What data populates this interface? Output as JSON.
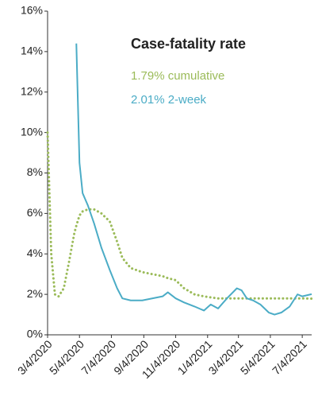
{
  "chart_data": {
    "type": "line",
    "title": "Case-fatality rate",
    "x": [
      "3/4/2020",
      "3/11/2020",
      "3/18/2020",
      "3/25/2020",
      "4/4/2020",
      "4/14/2020",
      "4/24/2020",
      "4/28/2020",
      "5/4/2020",
      "5/10/2020",
      "5/20/2020",
      "6/1/2020",
      "6/15/2020",
      "7/1/2020",
      "7/15/2020",
      "7/25/2020",
      "8/10/2020",
      "9/1/2020",
      "9/20/2020",
      "10/10/2020",
      "10/20/2020",
      "11/4/2020",
      "11/20/2020",
      "12/10/2020",
      "12/28/2020",
      "1/10/2021",
      "1/24/2021",
      "2/10/2021",
      "3/1/2021",
      "3/10/2021",
      "3/20/2021",
      "4/1/2021",
      "4/15/2021",
      "5/1/2021",
      "5/12/2021",
      "5/25/2021",
      "6/10/2021",
      "6/25/2021",
      "7/4/2021",
      "7/22/2021"
    ],
    "series": [
      {
        "name": "1.79% cumulative",
        "color": "#9bbb59",
        "dash": "dotted",
        "values": [
          10,
          4,
          2.0,
          1.9,
          2.3,
          3.6,
          5.0,
          5.4,
          5.9,
          6.1,
          6.2,
          6.2,
          6.0,
          5.6,
          4.6,
          3.8,
          3.3,
          3.1,
          3.0,
          2.9,
          2.8,
          2.7,
          2.3,
          2.0,
          1.9,
          1.85,
          1.8,
          1.8,
          1.8,
          1.8,
          1.8,
          1.8,
          1.8,
          1.8,
          1.8,
          1.8,
          1.8,
          1.8,
          1.8,
          1.79
        ]
      },
      {
        "name": "2.01% 2-week",
        "color": "#4bacc6",
        "dash": "solid",
        "values": [
          null,
          null,
          null,
          null,
          null,
          null,
          null,
          14.4,
          8.5,
          7.0,
          6.4,
          5.5,
          4.3,
          3.2,
          2.3,
          1.8,
          1.7,
          1.7,
          1.8,
          1.9,
          2.1,
          1.8,
          1.6,
          1.4,
          1.2,
          1.5,
          1.3,
          1.8,
          2.3,
          2.2,
          1.8,
          1.7,
          1.5,
          1.1,
          1.0,
          1.1,
          1.4,
          2.0,
          1.9,
          2.01
        ]
      }
    ],
    "xlim": [
      "3/4/2020",
      "7/22/2021"
    ],
    "xticks": [
      "3/4/2020",
      "5/4/2020",
      "7/4/2020",
      "9/4/2020",
      "11/4/2020",
      "1/4/2021",
      "3/4/2021",
      "5/4/2021",
      "7/4/2021"
    ],
    "ylim": [
      0,
      16
    ],
    "yticks": [
      {
        "value": 0,
        "label": "0%"
      },
      {
        "value": 2,
        "label": "2%"
      },
      {
        "value": 4,
        "label": "4%"
      },
      {
        "value": 6,
        "label": "6%"
      },
      {
        "value": 8,
        "label": "8%"
      },
      {
        "value": 10,
        "label": "10%"
      },
      {
        "value": 12,
        "label": "12%"
      },
      {
        "value": 14,
        "label": "14%"
      },
      {
        "value": 16,
        "label": "16%"
      }
    ],
    "grid": false
  }
}
